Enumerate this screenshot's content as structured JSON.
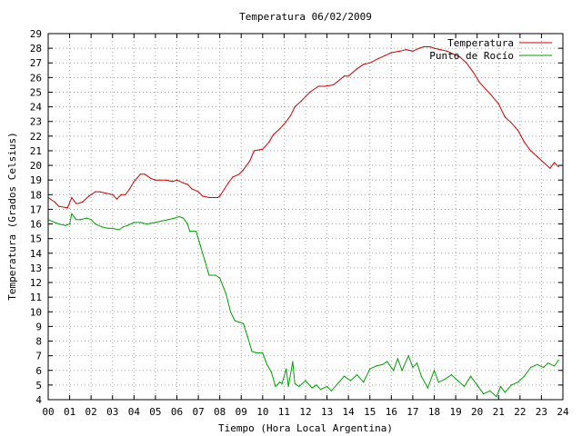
{
  "chart_data": {
    "type": "line",
    "title": "Temperatura 06/02/2009",
    "xlabel": "Tiempo (Hora Local Argentina)",
    "ylabel": "Temperatura (Grados Celsius)",
    "xlim": [
      0,
      24
    ],
    "ylim": [
      4,
      29
    ],
    "x_ticks": [
      "00",
      "01",
      "02",
      "03",
      "04",
      "05",
      "06",
      "07",
      "08",
      "09",
      "10",
      "11",
      "12",
      "13",
      "14",
      "15",
      "16",
      "17",
      "18",
      "19",
      "20",
      "21",
      "22",
      "23",
      "24"
    ],
    "y_ticks": [
      "4",
      "5",
      "6",
      "7",
      "8",
      "9",
      "10",
      "11",
      "12",
      "13",
      "14",
      "15",
      "16",
      "17",
      "18",
      "19",
      "20",
      "21",
      "22",
      "23",
      "24",
      "25",
      "26",
      "27",
      "28",
      "29"
    ],
    "grid": true,
    "legend_position": "top-right",
    "series": [
      {
        "name": "Temperatura",
        "color": "#d00000",
        "x": [
          0.0,
          0.3,
          0.5,
          0.9,
          1.1,
          1.3,
          1.4,
          1.6,
          1.9,
          2.2,
          2.4,
          2.7,
          3.0,
          3.2,
          3.4,
          3.6,
          3.8,
          4.0,
          4.3,
          4.5,
          4.8,
          5.0,
          5.2,
          5.5,
          5.8,
          6.0,
          6.3,
          6.5,
          6.7,
          7.0,
          7.2,
          7.5,
          7.9,
          8.0,
          8.4,
          8.6,
          8.9,
          9.1,
          9.4,
          9.6,
          10.0,
          10.3,
          10.5,
          10.8,
          11.1,
          11.3,
          11.5,
          11.8,
          12.2,
          12.6,
          12.9,
          13.3,
          13.8,
          14.0,
          14.4,
          14.7,
          15.0,
          15.4,
          15.7,
          16.0,
          16.4,
          16.7,
          17.0,
          17.3,
          17.5,
          17.8,
          18.0,
          18.3,
          18.6,
          18.9,
          19.2,
          19.5,
          19.8,
          20.1,
          20.4,
          20.6,
          21.0,
          21.3,
          21.6,
          21.9,
          22.2,
          22.5,
          22.8,
          23.1,
          23.4,
          23.6,
          23.8
        ],
        "values": [
          17.8,
          17.5,
          17.2,
          17.1,
          17.8,
          17.4,
          17.4,
          17.5,
          17.9,
          18.2,
          18.2,
          18.1,
          18.0,
          17.7,
          18.0,
          18.0,
          18.4,
          18.9,
          19.4,
          19.4,
          19.1,
          19.0,
          19.0,
          19.0,
          18.9,
          19.0,
          18.8,
          18.7,
          18.4,
          18.2,
          17.9,
          17.8,
          17.8,
          17.9,
          18.8,
          19.2,
          19.4,
          19.7,
          20.3,
          21.0,
          21.1,
          21.6,
          22.1,
          22.5,
          23.0,
          23.4,
          24.0,
          24.4,
          25.0,
          25.4,
          25.4,
          25.5,
          26.1,
          26.1,
          26.6,
          26.9,
          27.0,
          27.3,
          27.5,
          27.7,
          27.8,
          27.9,
          27.8,
          28.0,
          28.1,
          28.1,
          28.0,
          27.9,
          27.8,
          27.6,
          27.4,
          27.0,
          26.4,
          25.7,
          25.2,
          24.9,
          24.2,
          23.3,
          22.9,
          22.4,
          21.6,
          21.0,
          20.6,
          20.2,
          19.8,
          20.2,
          19.9
        ]
      },
      {
        "name": "Punto de Rocío",
        "color": "#00a000",
        "x": [
          0.0,
          0.3,
          0.5,
          0.8,
          1.0,
          1.1,
          1.3,
          1.5,
          1.8,
          2.0,
          2.2,
          2.5,
          2.8,
          3.0,
          3.3,
          3.5,
          3.7,
          4.0,
          4.3,
          4.6,
          5.0,
          5.3,
          5.6,
          5.9,
          6.1,
          6.3,
          6.5,
          6.6,
          6.9,
          7.1,
          7.3,
          7.5,
          7.8,
          8.0,
          8.3,
          8.5,
          8.7,
          8.9,
          9.1,
          9.3,
          9.5,
          9.7,
          10.0,
          10.2,
          10.4,
          10.6,
          10.8,
          10.9,
          11.1,
          11.2,
          11.4,
          11.5,
          11.7,
          12.0,
          12.3,
          12.5,
          12.7,
          13.0,
          13.2,
          13.5,
          13.8,
          14.1,
          14.4,
          14.7,
          15.0,
          15.3,
          15.6,
          15.8,
          16.1,
          16.3,
          16.5,
          16.8,
          17.0,
          17.2,
          17.4,
          17.7,
          18.0,
          18.2,
          18.5,
          18.8,
          19.1,
          19.4,
          19.7,
          20.0,
          20.3,
          20.6,
          20.9,
          21.1,
          21.3,
          21.6,
          21.9,
          22.2,
          22.5,
          22.8,
          23.1,
          23.3,
          23.6,
          23.8
        ],
        "values": [
          16.3,
          16.1,
          16.0,
          15.9,
          16.0,
          16.7,
          16.3,
          16.3,
          16.4,
          16.3,
          16.0,
          15.8,
          15.7,
          15.7,
          15.6,
          15.8,
          15.9,
          16.1,
          16.1,
          16.0,
          16.1,
          16.2,
          16.3,
          16.4,
          16.5,
          16.4,
          16.0,
          15.5,
          15.5,
          14.5,
          13.5,
          12.5,
          12.5,
          12.3,
          11.2,
          10.0,
          9.4,
          9.3,
          9.2,
          8.3,
          7.3,
          7.2,
          7.2,
          6.4,
          5.9,
          4.9,
          5.2,
          5.1,
          6.1,
          4.9,
          6.6,
          5.1,
          4.9,
          5.3,
          4.8,
          5.0,
          4.7,
          4.9,
          4.6,
          5.1,
          5.6,
          5.3,
          5.7,
          5.2,
          6.1,
          6.3,
          6.4,
          6.6,
          6.0,
          6.8,
          6.0,
          7.0,
          6.2,
          6.5,
          5.6,
          4.8,
          6.0,
          5.2,
          5.4,
          5.7,
          5.3,
          4.9,
          5.6,
          5.0,
          4.4,
          4.6,
          4.2,
          4.9,
          4.5,
          5.0,
          5.2,
          5.6,
          6.2,
          6.4,
          6.2,
          6.5,
          6.3,
          6.7
        ]
      }
    ]
  }
}
